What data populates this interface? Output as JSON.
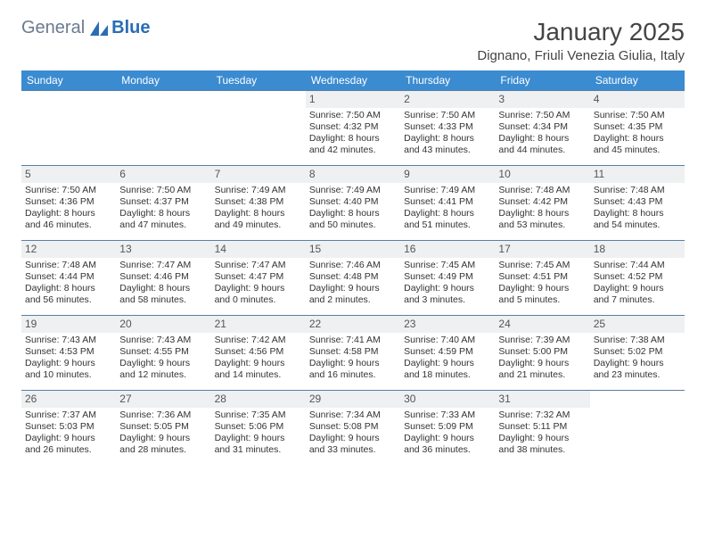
{
  "logo": {
    "word1": "General",
    "word2": "Blue"
  },
  "header": {
    "month_title": "January 2025",
    "location": "Dignano, Friuli Venezia Giulia, Italy"
  },
  "weekdays": [
    "Sunday",
    "Monday",
    "Tuesday",
    "Wednesday",
    "Thursday",
    "Friday",
    "Saturday"
  ],
  "labels": {
    "sunrise": "Sunrise:",
    "sunset": "Sunset:",
    "daylight": "Daylight:"
  },
  "colors": {
    "header_bg": "#3b8bd1",
    "header_text": "#ffffff",
    "row_border": "#5a7fa3",
    "daynum_bg": "#eef0f2",
    "logo_gray": "#6b7a8f",
    "logo_blue": "#2a6db5"
  },
  "weeks": [
    [
      null,
      null,
      null,
      {
        "n": "1",
        "sr": "7:50 AM",
        "ss": "4:32 PM",
        "dl1": "8 hours",
        "dl2": "and 42 minutes."
      },
      {
        "n": "2",
        "sr": "7:50 AM",
        "ss": "4:33 PM",
        "dl1": "8 hours",
        "dl2": "and 43 minutes."
      },
      {
        "n": "3",
        "sr": "7:50 AM",
        "ss": "4:34 PM",
        "dl1": "8 hours",
        "dl2": "and 44 minutes."
      },
      {
        "n": "4",
        "sr": "7:50 AM",
        "ss": "4:35 PM",
        "dl1": "8 hours",
        "dl2": "and 45 minutes."
      }
    ],
    [
      {
        "n": "5",
        "sr": "7:50 AM",
        "ss": "4:36 PM",
        "dl1": "8 hours",
        "dl2": "and 46 minutes."
      },
      {
        "n": "6",
        "sr": "7:50 AM",
        "ss": "4:37 PM",
        "dl1": "8 hours",
        "dl2": "and 47 minutes."
      },
      {
        "n": "7",
        "sr": "7:49 AM",
        "ss": "4:38 PM",
        "dl1": "8 hours",
        "dl2": "and 49 minutes."
      },
      {
        "n": "8",
        "sr": "7:49 AM",
        "ss": "4:40 PM",
        "dl1": "8 hours",
        "dl2": "and 50 minutes."
      },
      {
        "n": "9",
        "sr": "7:49 AM",
        "ss": "4:41 PM",
        "dl1": "8 hours",
        "dl2": "and 51 minutes."
      },
      {
        "n": "10",
        "sr": "7:48 AM",
        "ss": "4:42 PM",
        "dl1": "8 hours",
        "dl2": "and 53 minutes."
      },
      {
        "n": "11",
        "sr": "7:48 AM",
        "ss": "4:43 PM",
        "dl1": "8 hours",
        "dl2": "and 54 minutes."
      }
    ],
    [
      {
        "n": "12",
        "sr": "7:48 AM",
        "ss": "4:44 PM",
        "dl1": "8 hours",
        "dl2": "and 56 minutes."
      },
      {
        "n": "13",
        "sr": "7:47 AM",
        "ss": "4:46 PM",
        "dl1": "8 hours",
        "dl2": "and 58 minutes."
      },
      {
        "n": "14",
        "sr": "7:47 AM",
        "ss": "4:47 PM",
        "dl1": "9 hours",
        "dl2": "and 0 minutes."
      },
      {
        "n": "15",
        "sr": "7:46 AM",
        "ss": "4:48 PM",
        "dl1": "9 hours",
        "dl2": "and 2 minutes."
      },
      {
        "n": "16",
        "sr": "7:45 AM",
        "ss": "4:49 PM",
        "dl1": "9 hours",
        "dl2": "and 3 minutes."
      },
      {
        "n": "17",
        "sr": "7:45 AM",
        "ss": "4:51 PM",
        "dl1": "9 hours",
        "dl2": "and 5 minutes."
      },
      {
        "n": "18",
        "sr": "7:44 AM",
        "ss": "4:52 PM",
        "dl1": "9 hours",
        "dl2": "and 7 minutes."
      }
    ],
    [
      {
        "n": "19",
        "sr": "7:43 AM",
        "ss": "4:53 PM",
        "dl1": "9 hours",
        "dl2": "and 10 minutes."
      },
      {
        "n": "20",
        "sr": "7:43 AM",
        "ss": "4:55 PM",
        "dl1": "9 hours",
        "dl2": "and 12 minutes."
      },
      {
        "n": "21",
        "sr": "7:42 AM",
        "ss": "4:56 PM",
        "dl1": "9 hours",
        "dl2": "and 14 minutes."
      },
      {
        "n": "22",
        "sr": "7:41 AM",
        "ss": "4:58 PM",
        "dl1": "9 hours",
        "dl2": "and 16 minutes."
      },
      {
        "n": "23",
        "sr": "7:40 AM",
        "ss": "4:59 PM",
        "dl1": "9 hours",
        "dl2": "and 18 minutes."
      },
      {
        "n": "24",
        "sr": "7:39 AM",
        "ss": "5:00 PM",
        "dl1": "9 hours",
        "dl2": "and 21 minutes."
      },
      {
        "n": "25",
        "sr": "7:38 AM",
        "ss": "5:02 PM",
        "dl1": "9 hours",
        "dl2": "and 23 minutes."
      }
    ],
    [
      {
        "n": "26",
        "sr": "7:37 AM",
        "ss": "5:03 PM",
        "dl1": "9 hours",
        "dl2": "and 26 minutes."
      },
      {
        "n": "27",
        "sr": "7:36 AM",
        "ss": "5:05 PM",
        "dl1": "9 hours",
        "dl2": "and 28 minutes."
      },
      {
        "n": "28",
        "sr": "7:35 AM",
        "ss": "5:06 PM",
        "dl1": "9 hours",
        "dl2": "and 31 minutes."
      },
      {
        "n": "29",
        "sr": "7:34 AM",
        "ss": "5:08 PM",
        "dl1": "9 hours",
        "dl2": "and 33 minutes."
      },
      {
        "n": "30",
        "sr": "7:33 AM",
        "ss": "5:09 PM",
        "dl1": "9 hours",
        "dl2": "and 36 minutes."
      },
      {
        "n": "31",
        "sr": "7:32 AM",
        "ss": "5:11 PM",
        "dl1": "9 hours",
        "dl2": "and 38 minutes."
      },
      null
    ]
  ]
}
